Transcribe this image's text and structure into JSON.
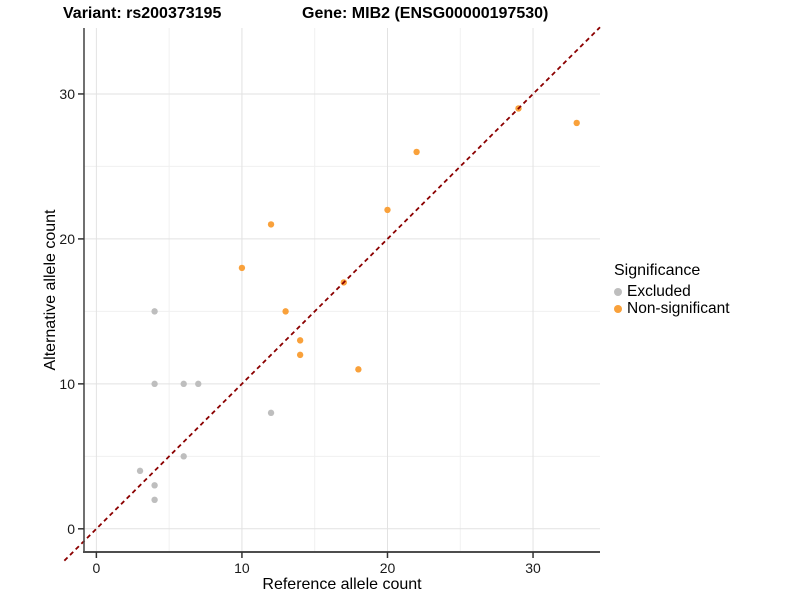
{
  "titles": {
    "left": "Variant: rs200373195",
    "right": "Gene: MIB2 (ENSG00000197530)"
  },
  "colors": {
    "excluded": "#BEBEBE",
    "non_significant": "#F9A13B",
    "identity_line": "#8B0000",
    "grid_major": "#E2E2E2",
    "grid_minor": "#F0F0F0",
    "axis_line": "#4D4D4D",
    "tick_text": "#1A1A1A"
  },
  "legend": {
    "title": "Significance",
    "items": [
      {
        "label": "Excluded",
        "color": "#BEBEBE"
      },
      {
        "label": "Non-significant",
        "color": "#F9A13B"
      }
    ]
  },
  "chart_data": {
    "type": "scatter",
    "title_left": "Variant: rs200373195",
    "title_right": "Gene: MIB2 (ENSG00000197530)",
    "xlabel": "Reference allele count",
    "ylabel": "Alternative allele count",
    "xlim": [
      -0.85,
      34.6
    ],
    "ylim": [
      -1.6,
      34.55
    ],
    "xticks": [
      0,
      10,
      20,
      30
    ],
    "yticks": [
      0,
      10,
      20,
      30
    ],
    "minor_xticks": [
      5,
      15,
      25
    ],
    "minor_yticks": [
      5,
      15,
      25
    ],
    "grid": true,
    "legend_position": "right",
    "identity_line": {
      "slope": 1,
      "intercept": 0,
      "style": "dashed",
      "color": "#8B0000"
    },
    "series": [
      {
        "name": "Excluded",
        "points": [
          [
            3,
            4
          ],
          [
            4,
            2
          ],
          [
            4,
            3
          ],
          [
            4,
            10
          ],
          [
            4,
            15
          ],
          [
            6,
            5
          ],
          [
            6,
            10
          ],
          [
            7,
            10
          ],
          [
            12,
            8
          ]
        ]
      },
      {
        "name": "Non-significant",
        "points": [
          [
            10,
            18
          ],
          [
            12,
            21
          ],
          [
            13,
            15
          ],
          [
            14,
            12
          ],
          [
            14,
            13
          ],
          [
            17,
            17
          ],
          [
            18,
            11
          ],
          [
            20,
            22
          ],
          [
            22,
            26
          ],
          [
            29,
            29
          ],
          [
            33,
            28
          ]
        ]
      }
    ]
  }
}
